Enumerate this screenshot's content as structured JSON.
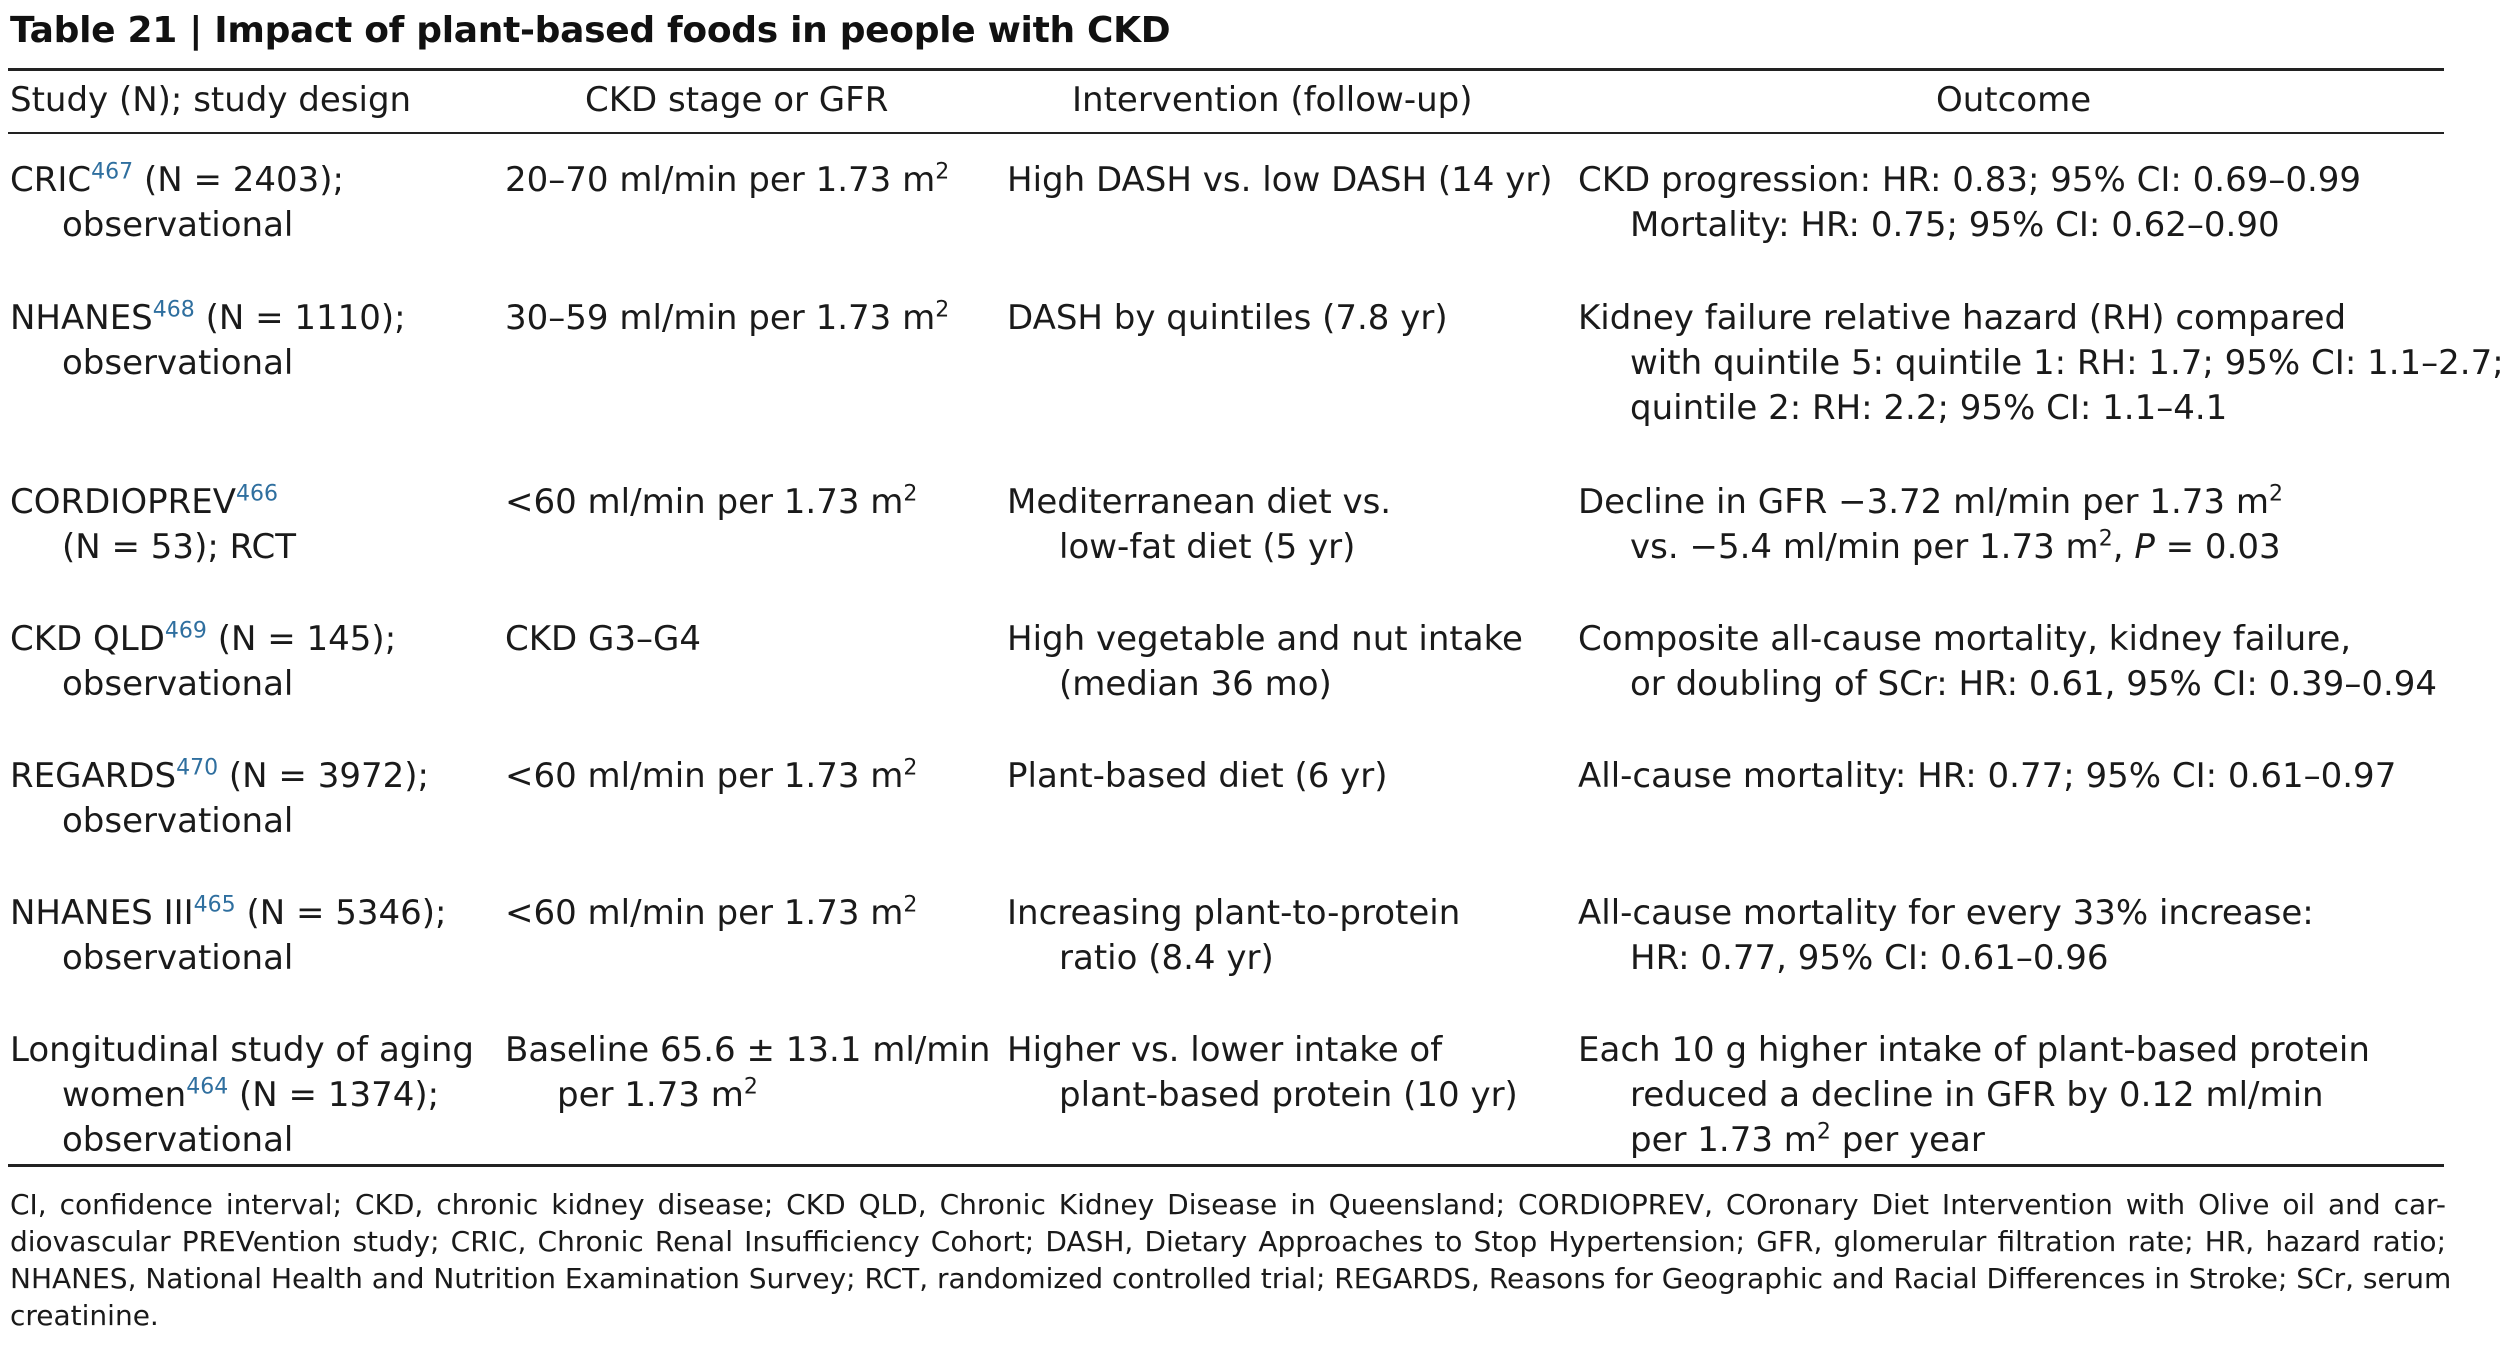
{
  "title": "Table 21 | Impact of plant-based foods in people with CKD",
  "headers": {
    "study": "Study (N); study design",
    "stage": "CKD stage or GFR",
    "intervention": "Intervention (follow-up)",
    "outcome": "Outcome"
  },
  "rows": [
    {
      "study": {
        "l1_name": "CRIC",
        "l1_ref": "467",
        "l1_rest": " (N = 2403);",
        "l2": "observational"
      },
      "stage": {
        "l1_text": "20–70 ml/min per 1.73 m",
        "l1_sup": "2"
      },
      "intervention": {
        "l1": "High DASH vs. low DASH (14 yr)"
      },
      "outcome": {
        "l1": "CKD progression: HR: 0.83; 95% CI: 0.69–0.99",
        "l2": "Mortality: HR: 0.75; 95% CI: 0.62–0.90"
      }
    },
    {
      "study": {
        "l1_name": "NHANES",
        "l1_ref": "468",
        "l1_rest": " (N = 1110);",
        "l2": "observational"
      },
      "stage": {
        "l1_text": "30–59 ml/min per 1.73 m",
        "l1_sup": "2"
      },
      "intervention": {
        "l1": "DASH by quintiles (7.8 yr)"
      },
      "outcome": {
        "l1": "Kidney failure relative hazard (RH) compared",
        "l2": "with quintile 5: quintile 1: RH: 1.7; 95% CI: 1.1–2.7;",
        "l3": "quintile 2: RH: 2.2; 95% CI: 1.1–4.1"
      }
    },
    {
      "study": {
        "l1_name": "CORDIOPREV",
        "l1_ref": "466",
        "l1_rest": "",
        "l2": "(N = 53); RCT"
      },
      "stage": {
        "l1_text": "<60 ml/min per 1.73 m",
        "l1_sup": "2"
      },
      "intervention": {
        "l1": "Mediterranean diet vs.",
        "l2": "low-fat diet (5 yr)"
      },
      "outcome": {
        "l1_text": "Decline in GFR −3.72 ml/min per 1.73 m",
        "l1_sup": "2",
        "l2_text": "vs. −5.4 ml/min per 1.73 m",
        "l2_sup": "2",
        "l2_mid": ", ",
        "l2_p": "P",
        "l2_end": " = 0.03"
      }
    },
    {
      "study": {
        "l1_name": "CKD QLD",
        "l1_ref": "469",
        "l1_rest": " (N = 145);",
        "l2": "observational"
      },
      "stage": {
        "l1_text": "CKD G3–G4"
      },
      "intervention": {
        "l1": "High vegetable and nut intake",
        "l2": "(median 36 mo)"
      },
      "outcome": {
        "l1": "Composite all-cause mortality, kidney failure,",
        "l2": "or doubling of SCr: HR: 0.61, 95% CI: 0.39–0.94"
      }
    },
    {
      "study": {
        "l1_name": "REGARDS",
        "l1_ref": "470",
        "l1_rest": " (N = 3972);",
        "l2": "observational"
      },
      "stage": {
        "l1_text": "<60 ml/min per 1.73 m",
        "l1_sup": "2"
      },
      "intervention": {
        "l1": "Plant-based diet (6 yr)"
      },
      "outcome": {
        "l1": "All-cause mortality: HR: 0.77; 95% CI: 0.61–0.97"
      }
    },
    {
      "study": {
        "l1_name": "NHANES III",
        "l1_ref": "465",
        "l1_rest": " (N = 5346);",
        "l2": "observational"
      },
      "stage": {
        "l1_text": "<60 ml/min per 1.73 m",
        "l1_sup": "2"
      },
      "intervention": {
        "l1": "Increasing plant-to-protein",
        "l2": "ratio (8.4 yr)"
      },
      "outcome": {
        "l1": "All-cause mortality for every 33% increase:",
        "l2": "HR: 0.77, 95% CI: 0.61–0.96"
      }
    },
    {
      "study": {
        "l1": "Longitudinal study of aging",
        "l2_name": "women",
        "l2_ref": "464",
        "l2_rest": " (N = 1374);",
        "l3": "observational"
      },
      "stage": {
        "l1_text": "Baseline 65.6 ± 13.1 ml/min",
        "l2_text": "per 1.73 m",
        "l2_sup": "2"
      },
      "intervention": {
        "l1": "Higher vs. lower intake of",
        "l2": "plant-based protein (10 yr)"
      },
      "outcome": {
        "l1": "Each 10 g higher intake of plant-based protein",
        "l2": "reduced a decline in GFR by 0.12 ml/min",
        "l3_text": "per 1.73 m",
        "l3_sup": "2",
        "l3_end": " per year"
      }
    }
  ],
  "footnote": {
    "l1": "CI, confidence interval; CKD, chronic kidney disease; CKD QLD, Chronic Kidney Disease in Queensland; CORDIOPREV, COronary Diet Intervention with Olive oil and car-",
    "l2": "diovascular PREVention study; CRIC, Chronic Renal Insufficiency Cohort; DASH, Dietary Approaches to Stop Hypertension; GFR, glomerular filtration rate; HR, hazard ratio;",
    "l3": "NHANES, National Health and Nutrition Examination Survey; RCT, randomized controlled trial; REGARDS, Reasons for Geographic and Racial Differences in Stroke; SCr, serum",
    "l4": "creatinine."
  }
}
